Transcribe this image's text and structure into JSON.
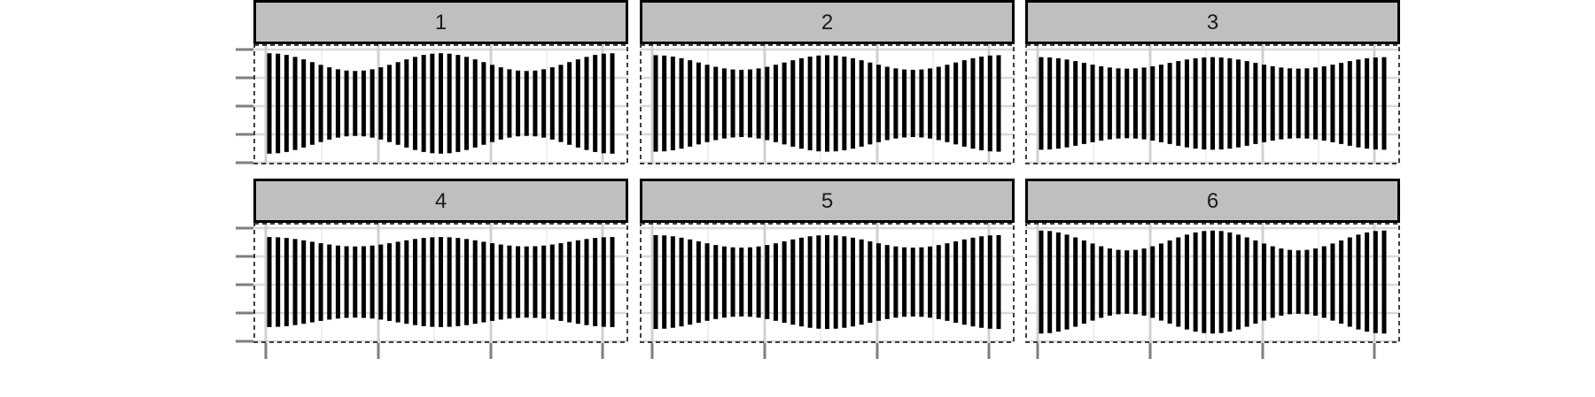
{
  "chart_data": {
    "type": "bar",
    "layout": "facet-grid 2x3",
    "grid": true,
    "x_axis_labels_shown": false,
    "y_axis_labels_shown": false,
    "bars_per_panel": 41,
    "bar_color": "#000000",
    "strip_fill": "#bfbfbf",
    "panels": [
      {
        "label": "1",
        "amplitude": 0.85
      },
      {
        "label": "2",
        "amplitude": 0.7
      },
      {
        "label": "3",
        "amplitude": 0.55
      },
      {
        "label": "4",
        "amplitude": 0.45
      },
      {
        "label": "5",
        "amplitude": 0.6
      },
      {
        "label": "6",
        "amplitude": 0.95
      }
    ]
  }
}
